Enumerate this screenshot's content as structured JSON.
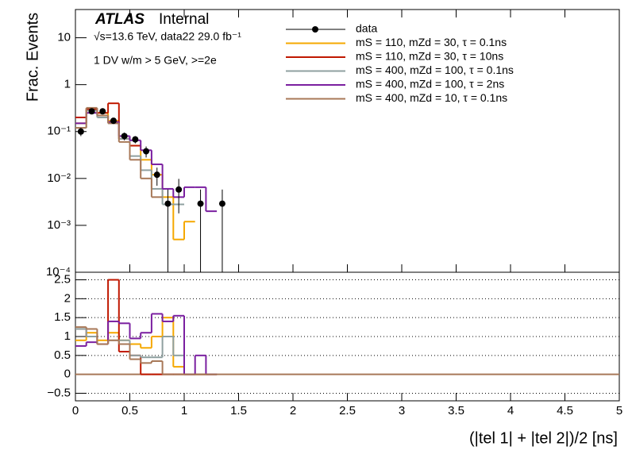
{
  "chart_data": [
    {
      "type": "step-log",
      "title_bold": "ATLAS",
      "title": "Internal",
      "subtitle": "√s=13.6 TeV, data22 29.0 fb⁻¹",
      "annotation": "1 DV w/m > 5 GeV, >=2e",
      "ylabel": "Frac. Events",
      "log_y": true,
      "xlim": [
        0,
        5
      ],
      "ylim": [
        0.0001,
        40
      ],
      "yticks": [
        {
          "value": 0.0001,
          "label": "10⁻⁴"
        },
        {
          "value": 0.001,
          "label": "10⁻³"
        },
        {
          "value": 0.01,
          "label": "10⁻²"
        },
        {
          "value": 0.1,
          "label": "10⁻¹"
        },
        1,
        10
      ],
      "bin_width": 0.1,
      "data": {
        "name": "data",
        "color": "#000000",
        "x": [
          0.05,
          0.15,
          0.25,
          0.35,
          0.45,
          0.55,
          0.65,
          0.75,
          0.85,
          0.95,
          1.15,
          1.35
        ],
        "values": [
          0.1,
          0.27,
          0.27,
          0.17,
          0.08,
          0.068,
          0.038,
          0.012,
          0.0029,
          0.0058,
          0.0029,
          0.0029
        ],
        "errors": [
          0.02,
          0.03,
          0.03,
          0.025,
          0.015,
          0.012,
          0.01,
          0.005,
          0.0029,
          0.004,
          0.0029,
          0.0029
        ]
      },
      "series": [
        {
          "name": "mS = 110, mZd = 30, τ = 0.1ns",
          "color": "#f5a800",
          "values": [
            0.15,
            0.3,
            0.25,
            0.17,
            0.08,
            0.05,
            0.025,
            0.012,
            0.004,
            0.0005,
            0.0012
          ]
        },
        {
          "name": "mS = 110, mZd = 30, τ = 10ns",
          "color": "#c01800",
          "values": [
            0.2,
            0.3,
            0.25,
            0.4,
            0.07,
            0.05
          ]
        },
        {
          "name": "mS = 400, mZd = 100, τ = 0.1ns",
          "color": "#8fa0a0",
          "values": [
            0.12,
            0.28,
            0.2,
            0.15,
            0.07,
            0.03,
            0.015,
            0.006,
            0.0028,
            0.0028
          ]
        },
        {
          "name": "mS = 400, mZd = 100, τ = 2ns",
          "color": "#7a1fa0",
          "values": [
            0.15,
            0.25,
            0.22,
            0.16,
            0.08,
            0.065,
            0.04,
            0.02,
            0.006,
            0.004,
            0.0065,
            0.0065,
            0.002
          ]
        },
        {
          "name": "mS = 400, mZd = 10, τ = 0.1ns",
          "color": "#a87858",
          "values": [
            0.12,
            0.32,
            0.22,
            0.15,
            0.06,
            0.025,
            0.01,
            0.004
          ]
        }
      ]
    },
    {
      "type": "step-ratio",
      "xlabel": "(|tel 1| + |tel 2|)/2 [ns]",
      "xlim": [
        0,
        5
      ],
      "ylim": [
        -0.7,
        2.7
      ],
      "xticks": [
        0,
        0.5,
        1,
        1.5,
        2,
        2.5,
        3,
        3.5,
        4,
        4.5,
        5
      ],
      "yticks": [
        {
          "value": -0.5,
          "label": "−0.5"
        },
        0,
        0.5,
        1,
        1.5,
        2,
        2.5
      ],
      "grid": true,
      "bin_width": 0.1,
      "series": [
        {
          "color": "#f5a800",
          "values": [
            0.9,
            1.1,
            0.9,
            1.1,
            0.9,
            0.8,
            0.7,
            1.0,
            1.5,
            0.2,
            0,
            0,
            0
          ]
        },
        {
          "color": "#c01800",
          "values": [
            1.2,
            1.0,
            0.8,
            2.5,
            0.6,
            0.5,
            0,
            0,
            0,
            0,
            0,
            0,
            0
          ]
        },
        {
          "color": "#8fa0a0",
          "values": [
            1.2,
            1.0,
            0.8,
            0.9,
            0.9,
            0.5,
            0.45,
            0.45,
            1.0,
            0.5,
            0,
            0,
            0
          ]
        },
        {
          "color": "#7a1fa0",
          "values": [
            0.75,
            0.85,
            0.8,
            1.4,
            1.35,
            0.95,
            1.1,
            1.6,
            1.4,
            1.55,
            0,
            0.5,
            0
          ]
        },
        {
          "color": "#a87858",
          "values": [
            1.25,
            1.2,
            0.8,
            0.9,
            0.8,
            0.4,
            0.3,
            0.35,
            0,
            0,
            0,
            0,
            0
          ]
        }
      ]
    }
  ]
}
